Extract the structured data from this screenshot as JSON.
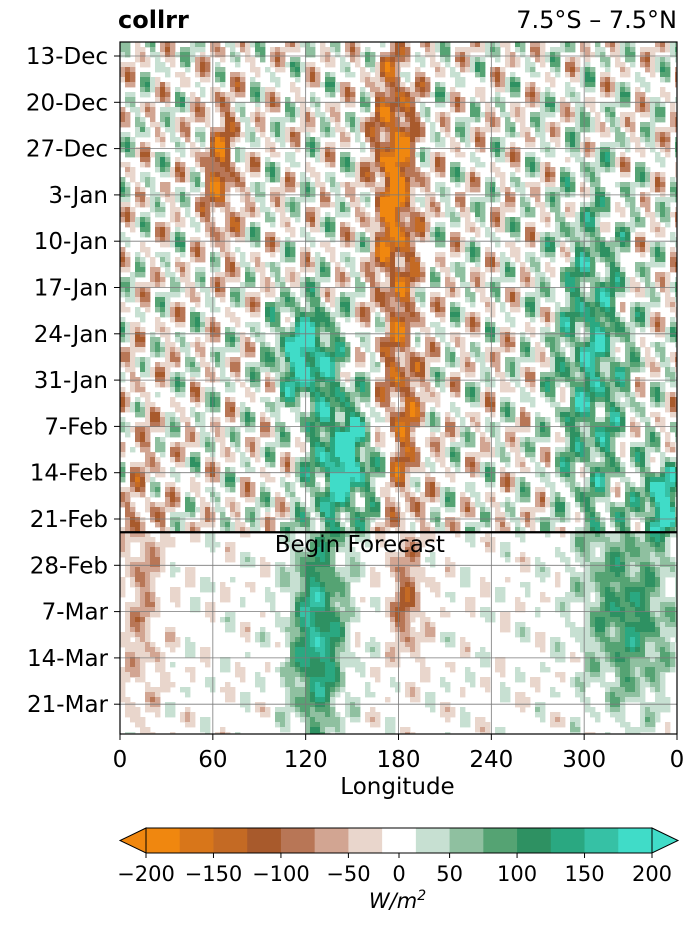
{
  "title_left": "collrr",
  "title_right": "7.5°S – 7.5°N",
  "chart_data": {
    "type": "heatmap",
    "xlabel": "Longitude",
    "xticks": [
      "0",
      "60",
      "120",
      "180",
      "240",
      "300",
      "0"
    ],
    "xlim": [
      0,
      360
    ],
    "yticks": [
      "13-Dec",
      "20-Dec",
      "27-Dec",
      "3-Jan",
      "10-Jan",
      "17-Jan",
      "24-Jan",
      "31-Jan",
      "7-Feb",
      "14-Feb",
      "21-Feb",
      "28-Feb",
      "7-Mar",
      "14-Mar",
      "21-Mar"
    ],
    "y_range_days": [
      "11-Dec",
      "26-Mar"
    ],
    "forecast_start": "23-Feb",
    "forecast_label": "Begin Forecast",
    "colorbar": {
      "label_base": "W/m",
      "label_exp": "2",
      "ticks": [
        "−200",
        "−150",
        "−100",
        "−50",
        "0",
        "50",
        "100",
        "150",
        "200"
      ],
      "levels": [
        -200,
        -175,
        -150,
        -125,
        -100,
        -75,
        -50,
        -25,
        25,
        50,
        75,
        100,
        125,
        150,
        175,
        200
      ],
      "colors": [
        "#f0870f",
        "#d8761a",
        "#c46a24",
        "#a85a2c",
        "#b87656",
        "#d2a592",
        "#e9d6cc",
        "#ffffff",
        "#c7e0d2",
        "#8fc0a0",
        "#55a373",
        "#2e9162",
        "#2aa881",
        "#36c1a5",
        "#40dcc8"
      ],
      "extend": "both"
    },
    "anomaly_features": [
      {
        "sign": "negative",
        "lon": [
          165,
          190
        ],
        "time": [
          "13-Dec",
          "20-Jan"
        ],
        "peak": -200
      },
      {
        "sign": "negative",
        "lon": [
          170,
          195
        ],
        "time": [
          "20-Jan",
          "21-Feb"
        ],
        "peak": -120
      },
      {
        "sign": "negative",
        "lon": [
          55,
          75
        ],
        "time": [
          "20-Dec",
          "10-Jan"
        ],
        "peak": -130
      },
      {
        "sign": "negative",
        "lon": [
          0,
          28
        ],
        "time": [
          "3-Feb",
          "26-Mar"
        ],
        "peak": -60
      },
      {
        "sign": "negative",
        "lon": [
          175,
          195
        ],
        "time": [
          "26-Feb",
          "14-Mar"
        ],
        "peak": -90
      },
      {
        "sign": "positive",
        "lon": [
          100,
          140
        ],
        "time": [
          "20-Jan",
          "3-Feb"
        ],
        "peak": 200
      },
      {
        "sign": "positive",
        "lon": [
          125,
          165
        ],
        "time": [
          "3-Feb",
          "21-Feb"
        ],
        "peak": 200
      },
      {
        "sign": "positive",
        "lon": [
          110,
          145
        ],
        "time": [
          "23-Feb",
          "26-Mar"
        ],
        "peak": 160
      },
      {
        "sign": "positive",
        "lon": [
          300,
          360
        ],
        "time": [
          "23-Feb",
          "21-Mar"
        ],
        "peak": 110
      },
      {
        "sign": "positive",
        "lon": [
          280,
          330
        ],
        "time": [
          "3-Jan",
          "21-Feb"
        ],
        "peak": 130
      },
      {
        "sign": "positive",
        "lon": [
          340,
          360
        ],
        "time": [
          "13-Feb",
          "23-Feb"
        ],
        "peak": 200
      }
    ]
  }
}
